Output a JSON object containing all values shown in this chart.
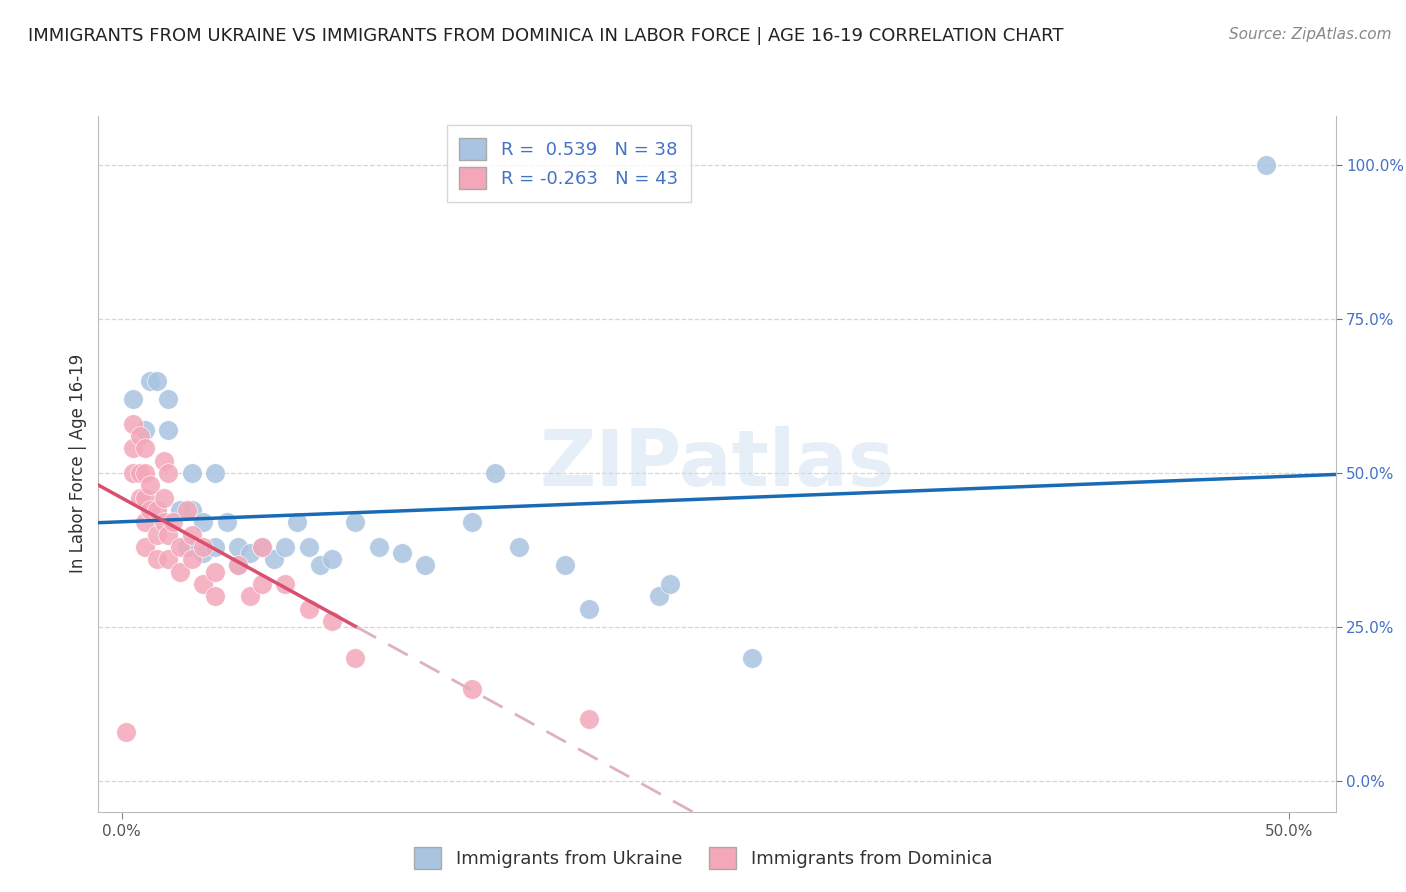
{
  "title": "IMMIGRANTS FROM UKRAINE VS IMMIGRANTS FROM DOMINICA IN LABOR FORCE | AGE 16-19 CORRELATION CHART",
  "source": "Source: ZipAtlas.com",
  "xlabel_bottom_ukraine": "Immigrants from Ukraine",
  "xlabel_bottom_dominica": "Immigrants from Dominica",
  "ylabel": "In Labor Force | Age 16-19",
  "watermark": "ZIPatlas",
  "ukraine_R": 0.539,
  "ukraine_N": 38,
  "dominica_R": -0.263,
  "dominica_N": 43,
  "ukraine_color": "#a8c4e0",
  "dominica_color": "#f4a7b9",
  "ukraine_line_color": "#1a6bb5",
  "dominica_line_color": "#d94f6e",
  "dominica_dash_color": "#e0b0c0",
  "ukraine_scatter": [
    [
      0.5,
      62.0
    ],
    [
      1.0,
      57.0
    ],
    [
      1.2,
      65.0
    ],
    [
      1.5,
      65.0
    ],
    [
      2.0,
      57.0
    ],
    [
      2.0,
      62.0
    ],
    [
      2.5,
      44.0
    ],
    [
      2.8,
      38.0
    ],
    [
      3.0,
      50.0
    ],
    [
      3.0,
      44.0
    ],
    [
      3.5,
      37.0
    ],
    [
      3.5,
      42.0
    ],
    [
      4.0,
      50.0
    ],
    [
      4.0,
      38.0
    ],
    [
      4.5,
      42.0
    ],
    [
      5.0,
      35.0
    ],
    [
      5.0,
      38.0
    ],
    [
      5.5,
      37.0
    ],
    [
      6.0,
      38.0
    ],
    [
      6.5,
      36.0
    ],
    [
      7.0,
      38.0
    ],
    [
      7.5,
      42.0
    ],
    [
      8.0,
      38.0
    ],
    [
      8.5,
      35.0
    ],
    [
      9.0,
      36.0
    ],
    [
      10.0,
      42.0
    ],
    [
      11.0,
      38.0
    ],
    [
      12.0,
      37.0
    ],
    [
      13.0,
      35.0
    ],
    [
      15.0,
      42.0
    ],
    [
      16.0,
      50.0
    ],
    [
      17.0,
      38.0
    ],
    [
      19.0,
      35.0
    ],
    [
      20.0,
      28.0
    ],
    [
      23.0,
      30.0
    ],
    [
      23.5,
      32.0
    ],
    [
      27.0,
      20.0
    ],
    [
      49.0,
      100.0
    ]
  ],
  "dominica_scatter": [
    [
      0.2,
      8.0
    ],
    [
      0.5,
      50.0
    ],
    [
      0.5,
      54.0
    ],
    [
      0.5,
      58.0
    ],
    [
      0.8,
      56.0
    ],
    [
      0.8,
      50.0
    ],
    [
      0.8,
      46.0
    ],
    [
      1.0,
      50.0
    ],
    [
      1.0,
      46.0
    ],
    [
      1.0,
      42.0
    ],
    [
      1.0,
      38.0
    ],
    [
      1.0,
      54.0
    ],
    [
      1.2,
      44.0
    ],
    [
      1.2,
      48.0
    ],
    [
      1.5,
      44.0
    ],
    [
      1.5,
      40.0
    ],
    [
      1.5,
      36.0
    ],
    [
      1.8,
      52.0
    ],
    [
      1.8,
      46.0
    ],
    [
      1.8,
      42.0
    ],
    [
      2.0,
      40.0
    ],
    [
      2.0,
      36.0
    ],
    [
      2.0,
      50.0
    ],
    [
      2.2,
      42.0
    ],
    [
      2.5,
      38.0
    ],
    [
      2.5,
      34.0
    ],
    [
      2.8,
      44.0
    ],
    [
      3.0,
      40.0
    ],
    [
      3.0,
      36.0
    ],
    [
      3.5,
      32.0
    ],
    [
      3.5,
      38.0
    ],
    [
      4.0,
      34.0
    ],
    [
      4.0,
      30.0
    ],
    [
      5.0,
      35.0
    ],
    [
      5.5,
      30.0
    ],
    [
      6.0,
      38.0
    ],
    [
      6.0,
      32.0
    ],
    [
      7.0,
      32.0
    ],
    [
      8.0,
      28.0
    ],
    [
      9.0,
      26.0
    ],
    [
      10.0,
      20.0
    ],
    [
      15.0,
      15.0
    ],
    [
      20.0,
      10.0
    ]
  ],
  "xlim": [
    -1.0,
    52.0
  ],
  "ylim": [
    -5.0,
    108.0
  ],
  "xtick_left_label": "0.0%",
  "xtick_right_label": "50.0%",
  "ytick_labels_right": [
    "0.0%",
    "25.0%",
    "50.0%",
    "75.0%",
    "100.0%"
  ],
  "ytick_positions_right": [
    0.0,
    25.0,
    50.0,
    75.0,
    100.0
  ],
  "background_color": "#ffffff",
  "grid_color": "#cccccc",
  "title_fontsize": 13,
  "axis_label_fontsize": 12,
  "tick_fontsize": 11,
  "legend_fontsize": 13,
  "source_fontsize": 11
}
